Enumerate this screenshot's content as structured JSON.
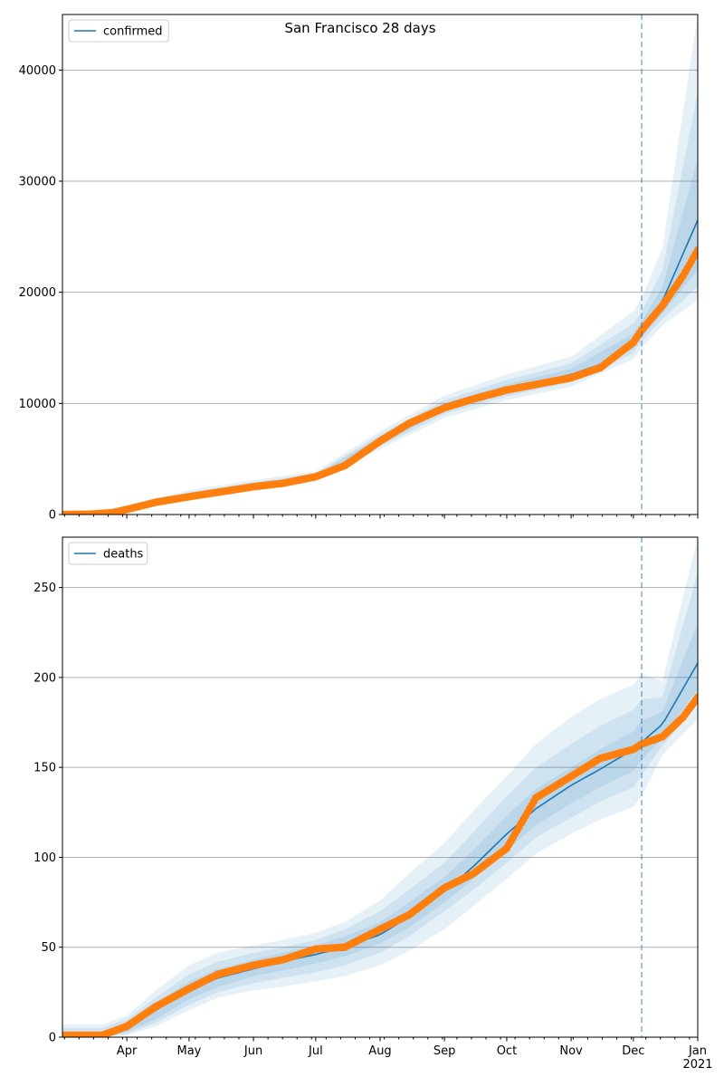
{
  "figure": {
    "title": "San Francisco 28 days"
  },
  "chart_data": [
    {
      "type": "line",
      "legend": [
        "confirmed"
      ],
      "legend_position": "top-left",
      "grid": "y",
      "x_range": [
        "2020-03-01",
        "2021-01-01"
      ],
      "ylim": [
        0,
        45000
      ],
      "y_ticks": [
        0,
        10000,
        20000,
        30000,
        40000
      ],
      "y_tick_labels": [
        "0",
        "10000",
        "20000",
        "30000",
        "40000"
      ],
      "x_tick_labels": [
        "Apr",
        "May",
        "Jun",
        "Jul",
        "Aug",
        "Sep",
        "Oct",
        "Nov",
        "Dec",
        "Jan\n2021"
      ],
      "x_tick_labels_visible": false,
      "forecast_start": "2020-12-05",
      "colors": {
        "model": "#1f77b4",
        "observed": "#ff7f0e",
        "band": "#1f77b4",
        "forecast_line": "#1f77b4"
      },
      "series": [
        {
          "name": "confirmed",
          "kind": "model-line",
          "x": [
            "2020-03-01",
            "2020-03-15",
            "2020-03-25",
            "2020-04-01",
            "2020-04-15",
            "2020-05-01",
            "2020-05-15",
            "2020-06-01",
            "2020-06-15",
            "2020-07-01",
            "2020-07-15",
            "2020-08-01",
            "2020-08-15",
            "2020-09-01",
            "2020-09-15",
            "2020-10-01",
            "2020-10-15",
            "2020-11-01",
            "2020-11-15",
            "2020-12-01",
            "2020-12-05",
            "2020-12-15",
            "2021-01-01"
          ],
          "y": [
            0,
            30,
            120,
            450,
            1100,
            1700,
            2200,
            2600,
            2900,
            3400,
            4500,
            6700,
            8300,
            9700,
            10500,
            11300,
            11900,
            12600,
            13500,
            15500,
            16600,
            19200,
            26500
          ]
        },
        {
          "name": "observed",
          "kind": "points",
          "x": [
            "2020-03-01",
            "2020-03-15",
            "2020-03-25",
            "2020-04-01",
            "2020-04-15",
            "2020-05-01",
            "2020-05-15",
            "2020-06-01",
            "2020-06-15",
            "2020-07-01",
            "2020-07-15",
            "2020-08-01",
            "2020-08-15",
            "2020-09-01",
            "2020-09-15",
            "2020-10-01",
            "2020-10-15",
            "2020-11-01",
            "2020-11-15",
            "2020-12-01",
            "2020-12-05",
            "2020-12-15",
            "2020-12-25",
            "2021-01-01"
          ],
          "y": [
            0,
            30,
            150,
            450,
            1100,
            1600,
            2000,
            2500,
            2800,
            3400,
            4400,
            6600,
            8200,
            9600,
            10400,
            11200,
            11700,
            12300,
            13200,
            15500,
            16600,
            18800,
            21500,
            23800
          ]
        }
      ],
      "bands": {
        "x": [
          "2020-03-01",
          "2020-04-01",
          "2020-05-01",
          "2020-06-01",
          "2020-07-01",
          "2020-08-01",
          "2020-09-01",
          "2020-10-01",
          "2020-11-01",
          "2020-12-01",
          "2020-12-05",
          "2020-12-15",
          "2021-01-01"
        ],
        "levels": [
          {
            "lo": [
              0,
              250,
              1300,
              2200,
              3000,
              5900,
              8700,
              10300,
              11500,
              14000,
              15000,
              17000,
              19300
            ],
            "hi": [
              120,
              750,
              2200,
              3100,
              3900,
              7500,
              10700,
              12600,
              14200,
              18300,
              19500,
              24000,
              45000
            ]
          },
          {
            "lo": [
              0,
              320,
              1450,
              2350,
              3150,
              6150,
              9050,
              10650,
              11900,
              14500,
              15600,
              17600,
              20500
            ],
            "hi": [
              80,
              650,
              2000,
              2900,
              3700,
              7200,
              10300,
              12100,
              13600,
              17200,
              18300,
              22000,
              38000
            ]
          },
          {
            "lo": [
              0,
              380,
              1550,
              2450,
              3250,
              6350,
              9300,
              10900,
              12200,
              14900,
              16000,
              18100,
              22000
            ],
            "hi": [
              40,
              550,
              1850,
              2750,
              3550,
              7000,
              10000,
              11700,
              13100,
              16300,
              17400,
              20500,
              32000
            ]
          }
        ]
      }
    },
    {
      "type": "line",
      "legend": [
        "deaths"
      ],
      "legend_position": "top-left",
      "grid": "y",
      "x_range": [
        "2020-03-01",
        "2021-01-01"
      ],
      "ylim": [
        0,
        278
      ],
      "y_ticks": [
        0,
        50,
        100,
        150,
        200,
        250
      ],
      "y_tick_labels": [
        "0",
        "50",
        "100",
        "150",
        "200",
        "250"
      ],
      "x_tick_labels": [
        "Apr",
        "May",
        "Jun",
        "Jul",
        "Aug",
        "Sep",
        "Oct",
        "Nov",
        "Dec",
        "Jan\n2021"
      ],
      "forecast_start": "2020-12-05",
      "colors": {
        "model": "#1f77b4",
        "observed": "#ff7f0e",
        "band": "#1f77b4",
        "forecast_line": "#1f77b4"
      },
      "series": [
        {
          "name": "deaths",
          "kind": "model-line",
          "x": [
            "2020-03-01",
            "2020-03-20",
            "2020-04-01",
            "2020-04-15",
            "2020-05-01",
            "2020-05-15",
            "2020-06-01",
            "2020-06-15",
            "2020-07-01",
            "2020-07-15",
            "2020-08-01",
            "2020-08-15",
            "2020-09-01",
            "2020-09-15",
            "2020-10-01",
            "2020-10-15",
            "2020-11-01",
            "2020-11-15",
            "2020-12-01",
            "2020-12-05",
            "2020-12-15",
            "2021-01-01"
          ],
          "y": [
            0,
            0,
            5,
            15,
            26,
            33,
            38,
            42,
            46,
            50,
            57,
            67,
            81,
            95,
            113,
            127,
            140,
            149,
            160,
            164,
            174,
            208
          ]
        },
        {
          "name": "observed",
          "kind": "points",
          "x": [
            "2020-03-01",
            "2020-03-20",
            "2020-04-01",
            "2020-04-15",
            "2020-05-01",
            "2020-05-15",
            "2020-06-01",
            "2020-06-15",
            "2020-07-01",
            "2020-07-15",
            "2020-08-01",
            "2020-08-15",
            "2020-09-01",
            "2020-09-15",
            "2020-10-01",
            "2020-10-15",
            "2020-11-01",
            "2020-11-15",
            "2020-12-01",
            "2020-12-05",
            "2020-12-15",
            "2020-12-25",
            "2021-01-01"
          ],
          "y": [
            1,
            1,
            6,
            17,
            27,
            35,
            40,
            43,
            49,
            50,
            60,
            68,
            83,
            91,
            105,
            133,
            145,
            155,
            160,
            163,
            167,
            178,
            189
          ]
        }
      ],
      "bands": {
        "x": [
          "2020-03-01",
          "2020-03-20",
          "2020-04-01",
          "2020-04-15",
          "2020-05-01",
          "2020-05-15",
          "2020-06-01",
          "2020-06-15",
          "2020-07-01",
          "2020-07-15",
          "2020-08-01",
          "2020-08-15",
          "2020-09-01",
          "2020-09-15",
          "2020-10-01",
          "2020-10-15",
          "2020-11-01",
          "2020-11-15",
          "2020-12-01",
          "2020-12-05",
          "2020-12-15",
          "2021-01-01"
        ],
        "levels": [
          {
            "lo": [
              0,
              0,
              1,
              6,
              15,
              22,
              26,
              28,
              31,
              34,
              40,
              48,
              60,
              73,
              88,
              102,
              113,
              121,
              128,
              134,
              157,
              177
            ],
            "hi": [
              7,
              7,
              12,
              26,
              40,
              47,
              51,
              54,
              58,
              64,
              76,
              91,
              108,
              126,
              145,
              163,
              178,
              188,
              196,
              202,
              198,
              278
            ]
          },
          {
            "lo": [
              0,
              0,
              2,
              8,
              18,
              25,
              30,
              33,
              36,
              40,
              47,
              56,
              70,
              82,
              97,
              111,
              122,
              131,
              139,
              146,
              162,
              185
            ],
            "hi": [
              5,
              5,
              10,
              22,
              35,
              42,
              47,
              50,
              54,
              60,
              70,
              82,
              97,
              114,
              134,
              150,
              163,
              173,
              182,
              188,
              189,
              258
            ]
          },
          {
            "lo": [
              0,
              0,
              3,
              10,
              21,
              28,
              34,
              37,
              41,
              45,
              52,
              61,
              75,
              88,
              104,
              118,
              130,
              139,
              148,
              154,
              166,
              194
            ],
            "hi": [
              3,
              3,
              8,
              19,
              31,
              38,
              43,
              47,
              51,
              56,
              64,
              75,
              89,
              104,
              123,
              138,
              150,
              160,
              170,
              176,
              181,
              230
            ]
          }
        ]
      }
    }
  ]
}
